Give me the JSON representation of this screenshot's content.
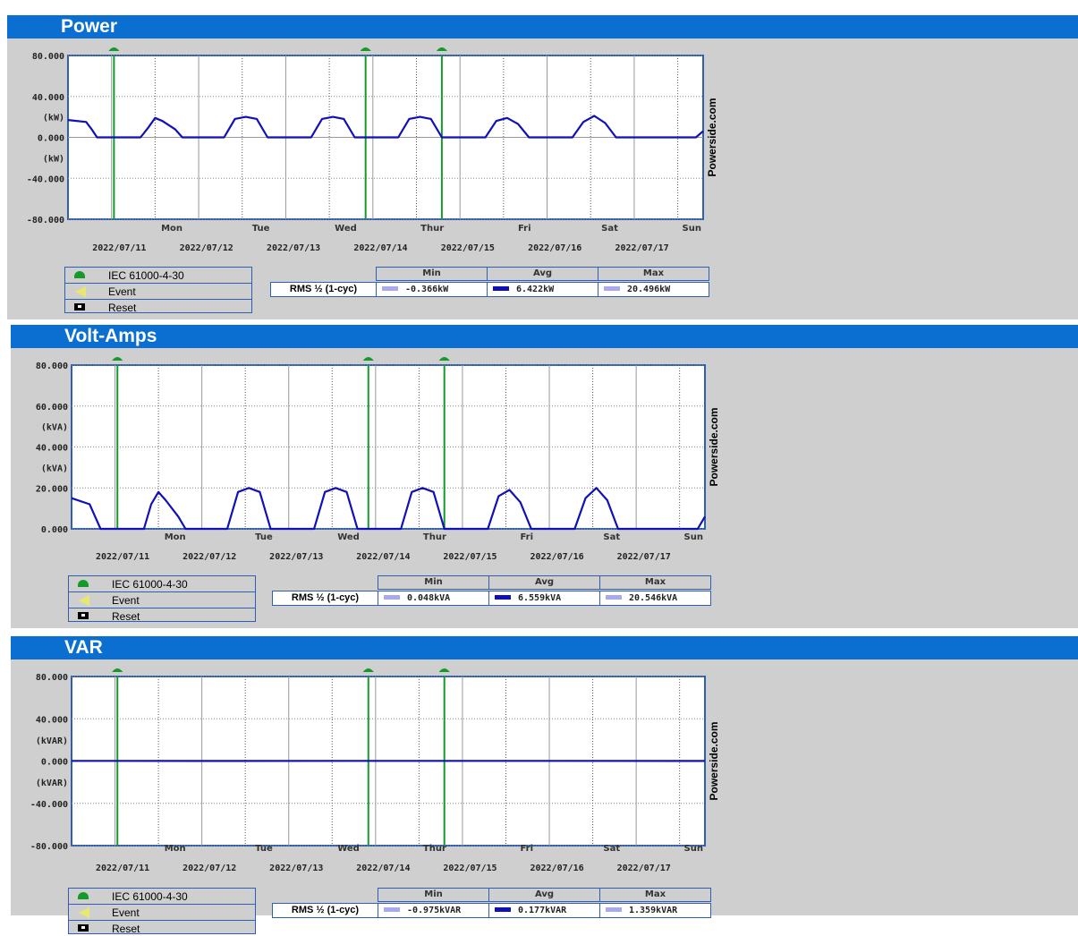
{
  "theme": {
    "accent": "#0a6fd0",
    "series_color": "#1010b8",
    "series_light": "#a9a9ee",
    "marker_color": "#139a2a",
    "panel_bg": "#cfcfcf"
  },
  "brand_text": "Powerside.com",
  "legend": [
    {
      "icon": "green-flag-icon",
      "label": "IEC 61000-4-30"
    },
    {
      "icon": "yellow-triangle-icon",
      "label": "Event"
    },
    {
      "icon": "reset-icon",
      "label": "Reset"
    }
  ],
  "stats_headers": {
    "min": "Min",
    "avg": "Avg",
    "max": "Max"
  },
  "panels": [
    {
      "title": "Power",
      "row_label": "RMS ½ (1-cyc)",
      "stats": {
        "min": "-0.366kW",
        "avg": "6.422kW",
        "max": "20.496kW"
      }
    },
    {
      "title": "Volt-Amps",
      "row_label": "RMS ½ (1-cyc)",
      "stats": {
        "min": "0.048kVA",
        "avg": "6.559kVA",
        "max": "20.546kVA"
      }
    },
    {
      "title": "VAR",
      "row_label": "RMS ½ (1-cyc)",
      "stats": {
        "min": "-0.975kVAR",
        "avg": "0.177kVAR",
        "max": "1.359kVAR"
      }
    }
  ],
  "chart_data": [
    {
      "type": "line",
      "title": "Power",
      "ylim": [
        -80,
        80
      ],
      "y_ticks": [
        "80.000",
        "40.000",
        "(kW)",
        "0.000",
        "(kW)",
        "-40.000",
        "-80.000"
      ],
      "x_range": [
        "2022-07-10T12:00",
        "2022-07-17T19:00"
      ],
      "day_names": [
        "Mon",
        "Tue",
        "Wed",
        "Thur",
        "Fri",
        "Sat",
        "Sun"
      ],
      "dates": [
        "2022/07/11",
        "2022/07/12",
        "2022/07/13",
        "2022/07/14",
        "2022/07/15",
        "2022/07/16",
        "2022/07/17"
      ],
      "event_markers": [
        "2022-07-11T00:40",
        "2022-07-13T22:00",
        "2022-07-14T19:00"
      ],
      "series": [
        {
          "x": [
            "2022-07-10T12:00",
            "2022-07-10T17:00",
            "2022-07-10T18:30",
            "2022-07-10T20:00",
            "2022-07-11T08:00",
            "2022-07-11T10:00",
            "2022-07-11T12:00",
            "2022-07-11T14:00",
            "2022-07-11T17:30",
            "2022-07-11T19:30",
            "2022-07-12T07:00",
            "2022-07-12T10:00",
            "2022-07-12T13:00",
            "2022-07-12T16:00",
            "2022-07-12T19:00",
            "2022-07-13T07:00",
            "2022-07-13T10:00",
            "2022-07-13T13:00",
            "2022-07-13T16:00",
            "2022-07-13T19:00",
            "2022-07-14T07:00",
            "2022-07-14T10:00",
            "2022-07-14T13:00",
            "2022-07-14T16:00",
            "2022-07-14T19:00",
            "2022-07-15T07:00",
            "2022-07-15T10:00",
            "2022-07-15T13:00",
            "2022-07-15T16:00",
            "2022-07-15T19:00",
            "2022-07-16T07:00",
            "2022-07-16T10:00",
            "2022-07-16T13:00",
            "2022-07-16T16:00",
            "2022-07-16T19:00",
            "2022-07-17T07:00",
            "2022-07-17T17:00",
            "2022-07-17T19:00"
          ],
          "values": [
            17,
            15,
            8,
            0,
            0,
            9,
            19,
            16,
            8,
            0,
            0,
            18,
            20,
            18,
            0,
            0,
            18,
            20,
            18,
            0,
            0,
            18,
            20,
            18,
            0,
            0,
            16,
            19,
            13,
            0,
            0,
            15,
            21,
            14,
            0,
            0,
            0,
            6
          ]
        }
      ]
    },
    {
      "type": "line",
      "title": "Volt-Amps",
      "ylim": [
        0,
        80
      ],
      "y_ticks": [
        "80.000",
        "60.000",
        "(kVA)",
        "40.000",
        "(kVA)",
        "20.000",
        "0.000"
      ],
      "x_range": [
        "2022-07-10T12:00",
        "2022-07-17T19:00"
      ],
      "day_names": [
        "Mon",
        "Tue",
        "Wed",
        "Thur",
        "Fri",
        "Sat",
        "Sun"
      ],
      "dates": [
        "2022/07/11",
        "2022/07/12",
        "2022/07/13",
        "2022/07/14",
        "2022/07/15",
        "2022/07/16",
        "2022/07/17"
      ],
      "event_markers": [
        "2022-07-11T00:40",
        "2022-07-13T22:00",
        "2022-07-14T19:00"
      ],
      "series": [
        {
          "x": [
            "2022-07-10T12:00",
            "2022-07-10T17:00",
            "2022-07-10T18:30",
            "2022-07-10T20:00",
            "2022-07-11T08:00",
            "2022-07-11T10:00",
            "2022-07-11T12:00",
            "2022-07-11T14:00",
            "2022-07-11T17:30",
            "2022-07-11T19:30",
            "2022-07-12T07:00",
            "2022-07-12T10:00",
            "2022-07-12T13:00",
            "2022-07-12T16:00",
            "2022-07-12T19:00",
            "2022-07-13T07:00",
            "2022-07-13T10:00",
            "2022-07-13T13:00",
            "2022-07-13T16:00",
            "2022-07-13T19:00",
            "2022-07-14T07:00",
            "2022-07-14T10:00",
            "2022-07-14T13:00",
            "2022-07-14T16:00",
            "2022-07-14T19:00",
            "2022-07-15T07:00",
            "2022-07-15T10:00",
            "2022-07-15T13:00",
            "2022-07-15T16:00",
            "2022-07-15T19:00",
            "2022-07-16T07:00",
            "2022-07-16T10:00",
            "2022-07-16T13:00",
            "2022-07-16T16:00",
            "2022-07-16T19:00",
            "2022-07-17T07:00",
            "2022-07-17T17:00",
            "2022-07-17T19:00"
          ],
          "values": [
            15,
            12,
            6,
            0,
            0,
            12,
            18,
            14,
            6,
            0,
            0,
            18,
            20,
            18,
            0,
            0,
            18,
            20,
            18,
            0,
            0,
            18,
            20,
            18,
            0,
            0,
            16,
            19,
            13,
            0,
            0,
            15,
            20,
            14,
            0,
            0,
            0,
            6
          ]
        }
      ]
    },
    {
      "type": "line",
      "title": "VAR",
      "ylim": [
        -80,
        80
      ],
      "y_ticks": [
        "80.000",
        "40.000",
        "(kVAR)",
        "0.000",
        "(kVAR)",
        "-40.000",
        "-80.000"
      ],
      "x_range": [
        "2022-07-10T12:00",
        "2022-07-17T19:00"
      ],
      "day_names": [
        "Mon",
        "Tue",
        "Wed",
        "Thur",
        "Fri",
        "Sat",
        "Sun"
      ],
      "dates": [
        "2022/07/11",
        "2022/07/12",
        "2022/07/13",
        "2022/07/14",
        "2022/07/15",
        "2022/07/16",
        "2022/07/17"
      ],
      "event_markers": [
        "2022-07-11T00:40",
        "2022-07-13T22:00",
        "2022-07-14T19:00"
      ],
      "series": [
        {
          "x": [
            "2022-07-10T12:00",
            "2022-07-12T00:00",
            "2022-07-14T00:00",
            "2022-07-16T00:00",
            "2022-07-17T19:00"
          ],
          "values": [
            0.2,
            0.1,
            0.2,
            0.2,
            0.1
          ]
        }
      ]
    }
  ]
}
